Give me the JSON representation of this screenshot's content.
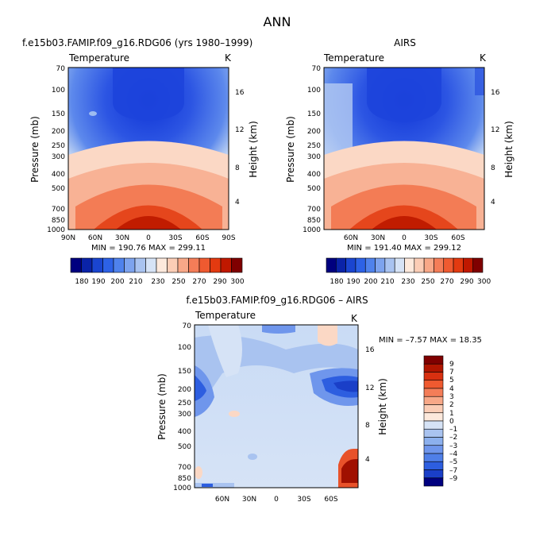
{
  "page": {
    "title": "ANN"
  },
  "pressure_ticks": [
    "70",
    "100",
    "150",
    "200",
    "250",
    "300",
    "400",
    "500",
    "700",
    "850",
    "1000"
  ],
  "height_ticks": [
    "4",
    "8",
    "12",
    "16"
  ],
  "chart_data": [
    {
      "id": "model",
      "type": "heatmap",
      "title": "f.e15b03.FAMIP.f09_g16.RDG06 (yrs 1980–1999)",
      "subtitle_left": "Temperature",
      "subtitle_right": "K",
      "ylabel": "Pressure (mb)",
      "ylabel_right": "Height (km)",
      "xticks": [
        "90N",
        "60N",
        "30N",
        "0",
        "30S",
        "60S",
        "90S"
      ],
      "stats": "MIN = 190.76   MAX = 299.11",
      "colorbar_labels": [
        "180",
        "190",
        "200",
        "210",
        "230",
        "250",
        "270",
        "290",
        "300"
      ],
      "colors": [
        "#00007f",
        "#0a23a8",
        "#1a45d0",
        "#2d62e6",
        "#4f82ec",
        "#7da3ee",
        "#a9c3f0",
        "#d6e3f6",
        "#fde9dc",
        "#fbcdb6",
        "#f8a888",
        "#f47d58",
        "#ef5a30",
        "#e33a10",
        "#c01800",
        "#7f0000"
      ],
      "ylim": [
        1000,
        70
      ],
      "xlim": [
        90,
        -90
      ]
    },
    {
      "id": "obs",
      "type": "heatmap",
      "title": "AIRS",
      "subtitle_left": "Temperature",
      "subtitle_right": "K",
      "ylabel": "Pressure (mb)",
      "ylabel_right": "Height (km)",
      "xticks": [
        "60N",
        "30N",
        "0",
        "30S",
        "60S"
      ],
      "stats": "MIN = 191.40   MAX = 299.12",
      "colorbar_labels": [
        "180",
        "190",
        "200",
        "210",
        "230",
        "250",
        "270",
        "290",
        "300"
      ],
      "ylim": [
        1000,
        70
      ],
      "xlim": [
        90,
        -90
      ]
    },
    {
      "id": "diff",
      "type": "heatmap",
      "title": "f.e15b03.FAMIP.f09_g16.RDG06 – AIRS",
      "subtitle_left": "Temperature",
      "subtitle_right": "K",
      "ylabel": "Pressure (mb)",
      "ylabel_right": "Height (km)",
      "xticks": [
        "60N",
        "30N",
        "0",
        "30S",
        "60S"
      ],
      "stats": "MIN =   –7.57   MAX =   18.35",
      "colorbar_labels": [
        "9",
        "7",
        "5",
        "4",
        "3",
        "2",
        "1",
        "0",
        "–1",
        "–2",
        "–3",
        "–4",
        "–5",
        "–7",
        "–9"
      ],
      "colors": [
        "#7f0000",
        "#b01500",
        "#d83010",
        "#ef5a30",
        "#f47d58",
        "#f8a888",
        "#fbcdb6",
        "#fde9dc",
        "#d6e3f6",
        "#a9c3f0",
        "#8cb0ee",
        "#6f96ec",
        "#4f7fe8",
        "#2d5ee0",
        "#1a3fc8",
        "#00007f"
      ],
      "ylim": [
        1000,
        70
      ],
      "xlim": [
        90,
        -90
      ]
    }
  ]
}
